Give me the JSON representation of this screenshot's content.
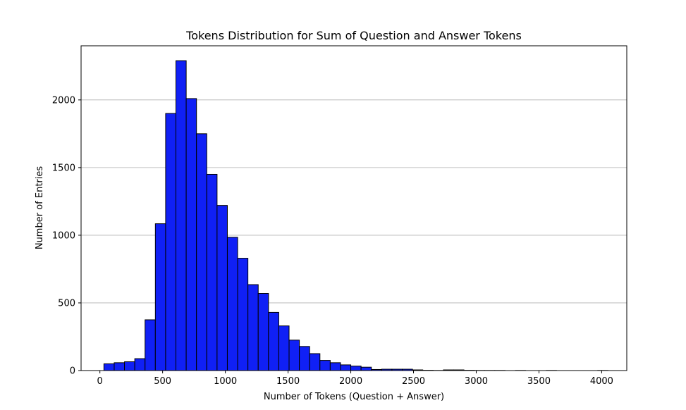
{
  "chart_data": {
    "type": "bar",
    "title": "Tokens Distribution for Sum of Question and Answer Tokens",
    "xlabel": "Number of Tokens (Question + Answer)",
    "ylabel": "Number of Entries",
    "xlim": [
      -150,
      4200
    ],
    "ylim": [
      0,
      2400
    ],
    "x_ticks": [
      0,
      500,
      1000,
      1500,
      2000,
      2500,
      3000,
      3500,
      4000
    ],
    "y_ticks": [
      0,
      500,
      1000,
      1500,
      2000
    ],
    "grid": "horizontal",
    "bar_color": "#1020f5",
    "edge_color": "#000000",
    "bin_width": 82,
    "bin_starts": [
      32,
      114,
      196,
      278,
      360,
      442,
      524,
      606,
      688,
      770,
      852,
      934,
      1016,
      1098,
      1180,
      1262,
      1344,
      1426,
      1508,
      1590,
      1672,
      1754,
      1836,
      1918,
      2000,
      2082,
      2164,
      2246,
      2328,
      2410,
      2492,
      2574,
      2656,
      2738,
      2820,
      2902,
      2984,
      3066,
      3148,
      3230,
      3312,
      3394,
      3476,
      3558,
      3640,
      3722,
      3804,
      3886,
      3968
    ],
    "values": [
      50,
      58,
      65,
      88,
      375,
      1085,
      1900,
      2290,
      2010,
      1750,
      1450,
      1220,
      985,
      830,
      635,
      570,
      430,
      330,
      225,
      178,
      125,
      75,
      58,
      42,
      33,
      25,
      8,
      10,
      10,
      10,
      5,
      2,
      1,
      5,
      5,
      2,
      1,
      1,
      1,
      0,
      1,
      0,
      0,
      1,
      0,
      0,
      0,
      0,
      1
    ]
  }
}
